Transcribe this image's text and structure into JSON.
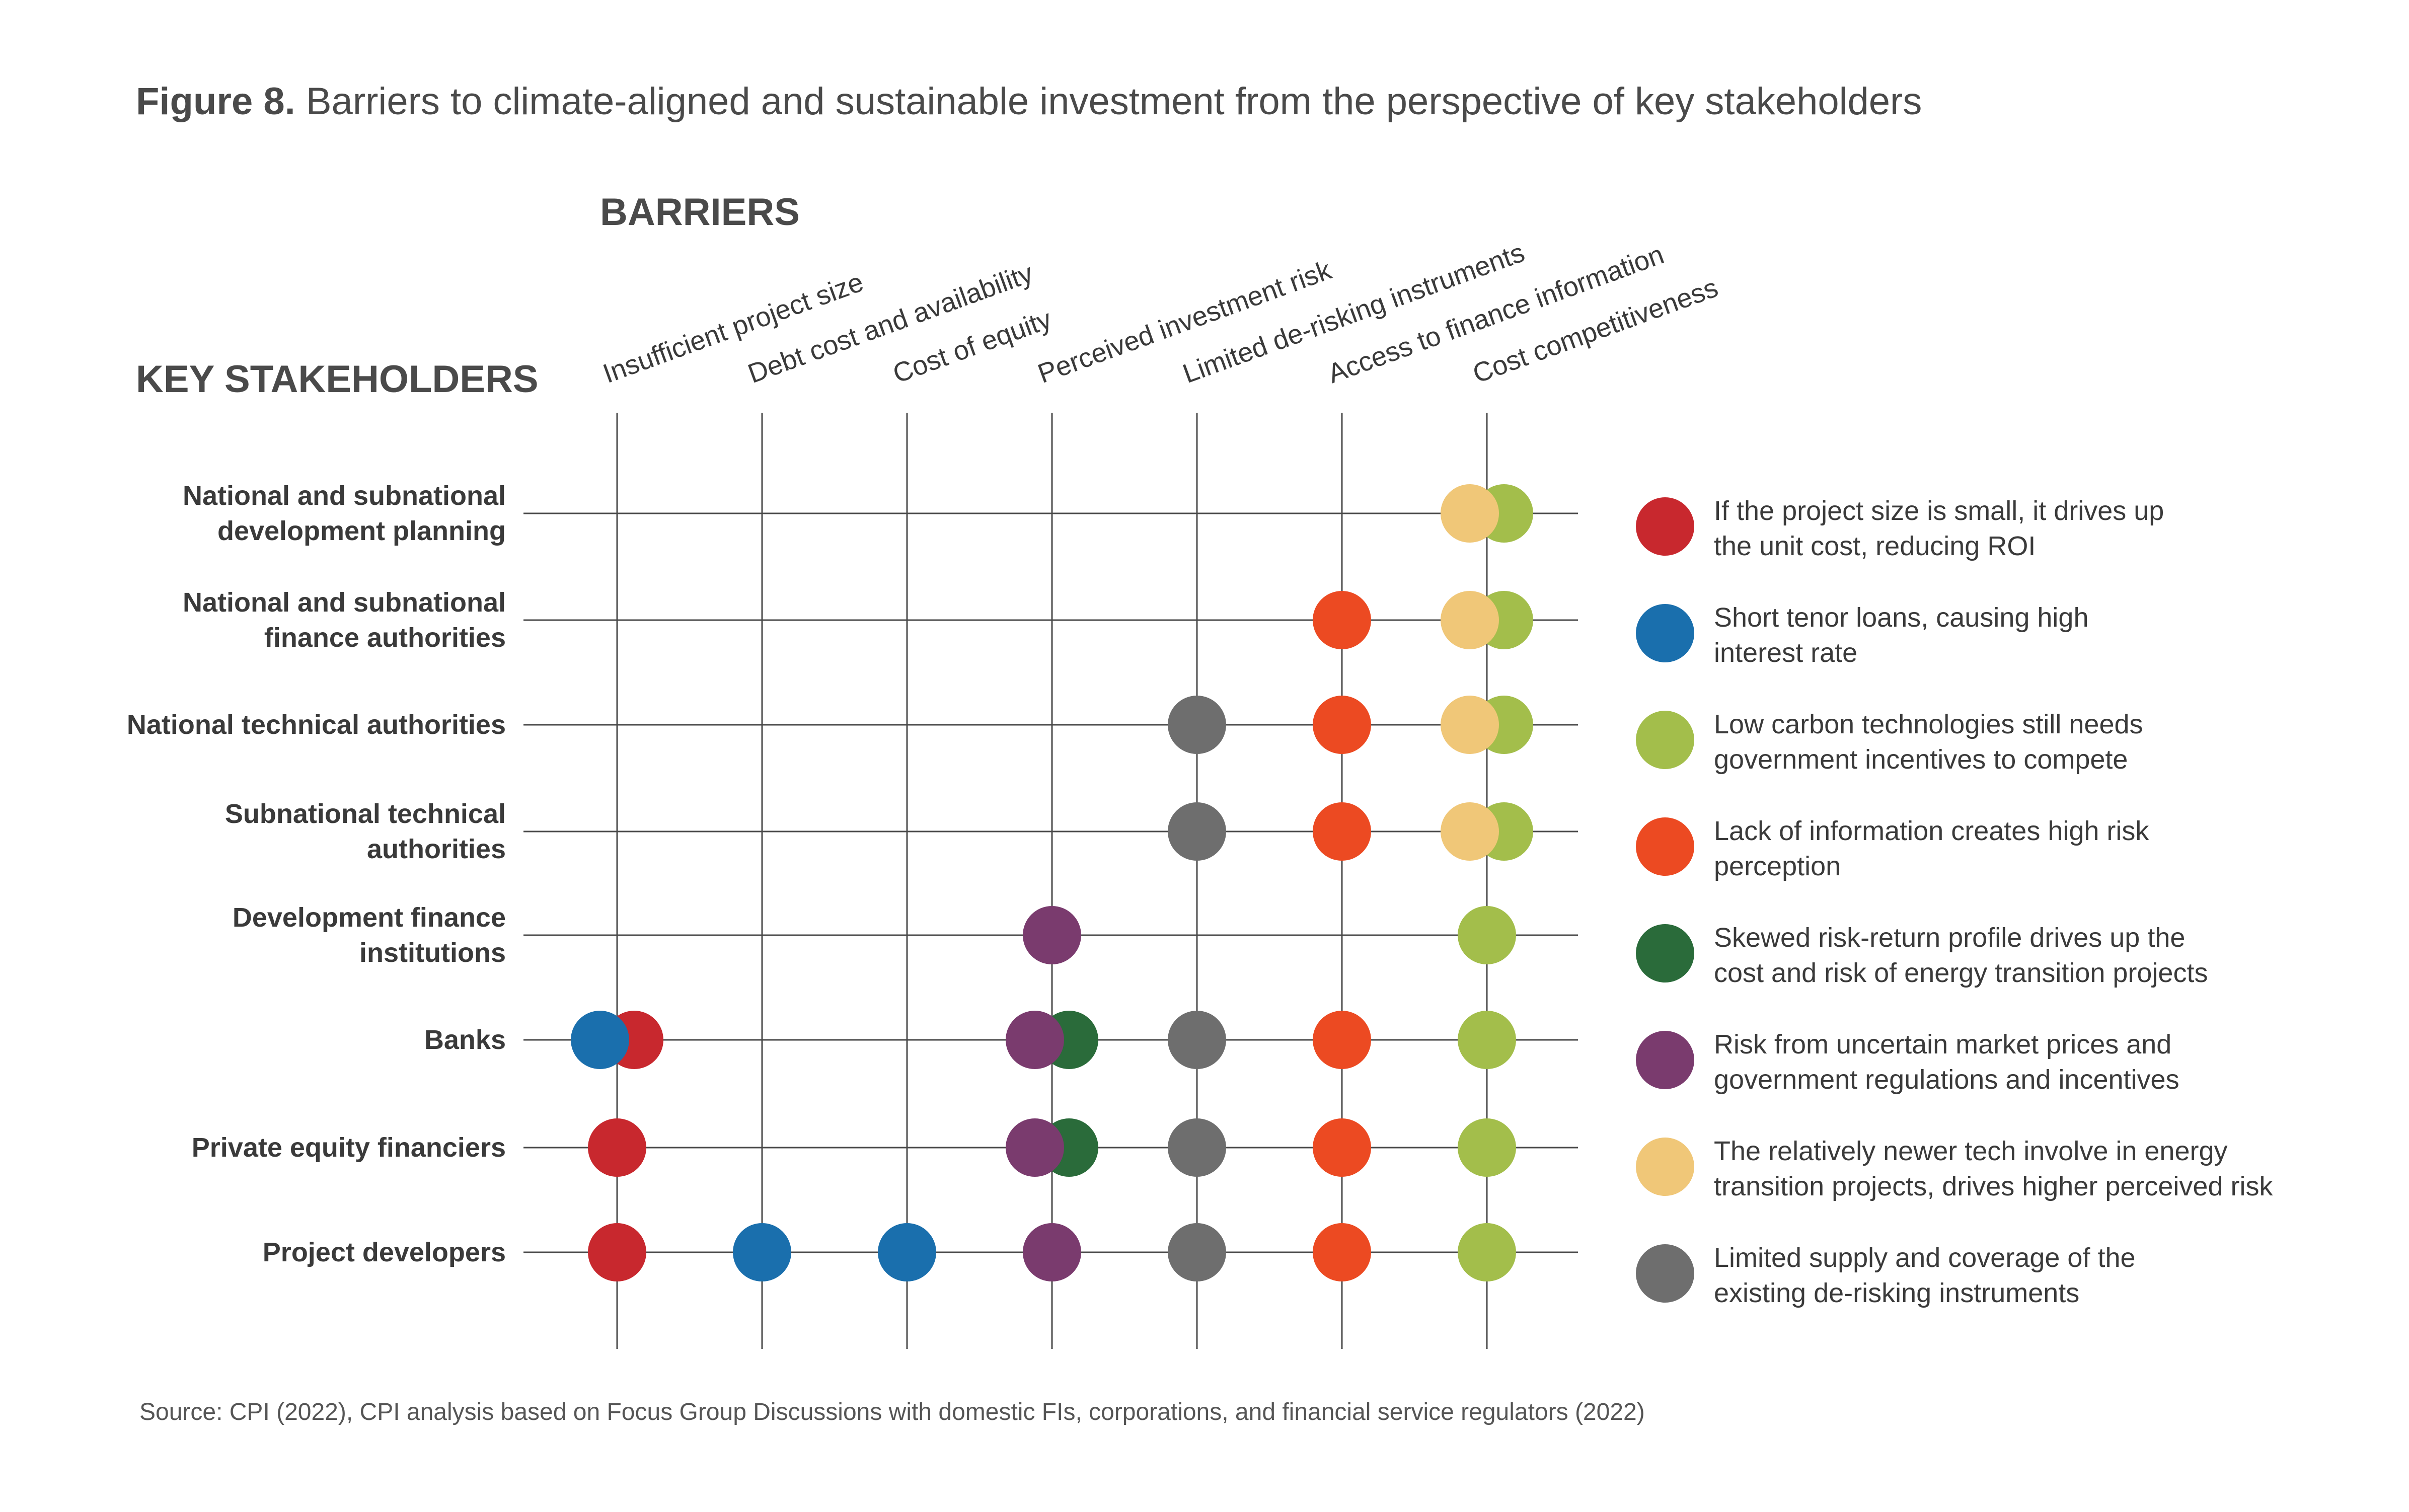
{
  "figure_label": "Figure 8.",
  "figure_title": "Barriers to climate-aligned and sustainable investment from the perspective of key stakeholders",
  "barriers_heading": "BARRIERS",
  "stakeholders_heading": "KEY STAKEHOLDERS",
  "source": "Source: CPI (2022), CPI analysis based on Focus Group Discussions with domestic FIs, corporations, and financial service regulators (2022)",
  "colors": {
    "red": "#c8282e",
    "blue": "#1a6fad",
    "light_green": "#a3be4b",
    "orange": "#ec4a22",
    "dark_green": "#2a6b3a",
    "purple": "#7a3b6e",
    "yellow": "#f0c778",
    "gray": "#6e6e6e",
    "grid": "#4a4a4a"
  },
  "barriers": [
    "Insufficient project size",
    "Debt cost and availability",
    "Cost of equity",
    "Perceived investment risk",
    "Limited de-risking instruments",
    "Access to finance information",
    "Cost competitiveness"
  ],
  "stakeholders": [
    {
      "label": "National and subnational\ndevelopment planning"
    },
    {
      "label": "National and subnational\nfinance authorities"
    },
    {
      "label": "National technical authorities"
    },
    {
      "label": "Subnational technical\nauthorities"
    },
    {
      "label": "Development finance\ninstitutions"
    },
    {
      "label": "Banks"
    },
    {
      "label": "Private equity financiers"
    },
    {
      "label": "Project developers"
    }
  ],
  "legend": [
    {
      "color": "red",
      "text": "If the project size is small, it drives up\nthe unit cost, reducing ROI"
    },
    {
      "color": "blue",
      "text": "Short tenor loans, causing high\ninterest rate"
    },
    {
      "color": "light_green",
      "text": "Low carbon technologies still needs\ngovernment incentives to compete"
    },
    {
      "color": "orange",
      "text": "Lack of information creates high risk\nperception"
    },
    {
      "color": "dark_green",
      "text": "Skewed risk-return profile drives up the\ncost and risk of energy transition projects"
    },
    {
      "color": "purple",
      "text": "Risk from uncertain market prices and\ngovernment regulations and incentives"
    },
    {
      "color": "yellow",
      "text": "The relatively newer tech involve in energy\ntransition projects, drives higher perceived risk"
    },
    {
      "color": "gray",
      "text": "Limited supply and coverage of the\nexisting de-risking instruments"
    }
  ],
  "chart_data": {
    "type": "matrix",
    "dots": [
      {
        "stakeholder": 0,
        "barrier": 6,
        "colors": [
          "light_green",
          "yellow"
        ]
      },
      {
        "stakeholder": 1,
        "barrier": 5,
        "colors": [
          "orange"
        ]
      },
      {
        "stakeholder": 1,
        "barrier": 6,
        "colors": [
          "light_green",
          "yellow"
        ]
      },
      {
        "stakeholder": 2,
        "barrier": 4,
        "colors": [
          "gray"
        ]
      },
      {
        "stakeholder": 2,
        "barrier": 5,
        "colors": [
          "orange"
        ]
      },
      {
        "stakeholder": 2,
        "barrier": 6,
        "colors": [
          "light_green",
          "yellow"
        ]
      },
      {
        "stakeholder": 3,
        "barrier": 4,
        "colors": [
          "gray"
        ]
      },
      {
        "stakeholder": 3,
        "barrier": 5,
        "colors": [
          "orange"
        ]
      },
      {
        "stakeholder": 3,
        "barrier": 6,
        "colors": [
          "light_green",
          "yellow"
        ]
      },
      {
        "stakeholder": 4,
        "barrier": 3,
        "colors": [
          "purple"
        ]
      },
      {
        "stakeholder": 4,
        "barrier": 6,
        "colors": [
          "light_green"
        ]
      },
      {
        "stakeholder": 5,
        "barrier": 0,
        "colors": [
          "red",
          "blue"
        ]
      },
      {
        "stakeholder": 5,
        "barrier": 3,
        "colors": [
          "dark_green",
          "purple"
        ]
      },
      {
        "stakeholder": 5,
        "barrier": 4,
        "colors": [
          "gray"
        ]
      },
      {
        "stakeholder": 5,
        "barrier": 5,
        "colors": [
          "orange"
        ]
      },
      {
        "stakeholder": 5,
        "barrier": 6,
        "colors": [
          "light_green"
        ]
      },
      {
        "stakeholder": 6,
        "barrier": 0,
        "colors": [
          "red"
        ]
      },
      {
        "stakeholder": 6,
        "barrier": 3,
        "colors": [
          "dark_green",
          "purple"
        ]
      },
      {
        "stakeholder": 6,
        "barrier": 4,
        "colors": [
          "gray"
        ]
      },
      {
        "stakeholder": 6,
        "barrier": 5,
        "colors": [
          "orange"
        ]
      },
      {
        "stakeholder": 6,
        "barrier": 6,
        "colors": [
          "light_green"
        ]
      },
      {
        "stakeholder": 7,
        "barrier": 0,
        "colors": [
          "red"
        ]
      },
      {
        "stakeholder": 7,
        "barrier": 1,
        "colors": [
          "blue"
        ]
      },
      {
        "stakeholder": 7,
        "barrier": 2,
        "colors": [
          "blue"
        ]
      },
      {
        "stakeholder": 7,
        "barrier": 3,
        "colors": [
          "purple"
        ]
      },
      {
        "stakeholder": 7,
        "barrier": 4,
        "colors": [
          "gray"
        ]
      },
      {
        "stakeholder": 7,
        "barrier": 5,
        "colors": [
          "orange"
        ]
      },
      {
        "stakeholder": 7,
        "barrier": 6,
        "colors": [
          "light_green"
        ]
      }
    ]
  }
}
